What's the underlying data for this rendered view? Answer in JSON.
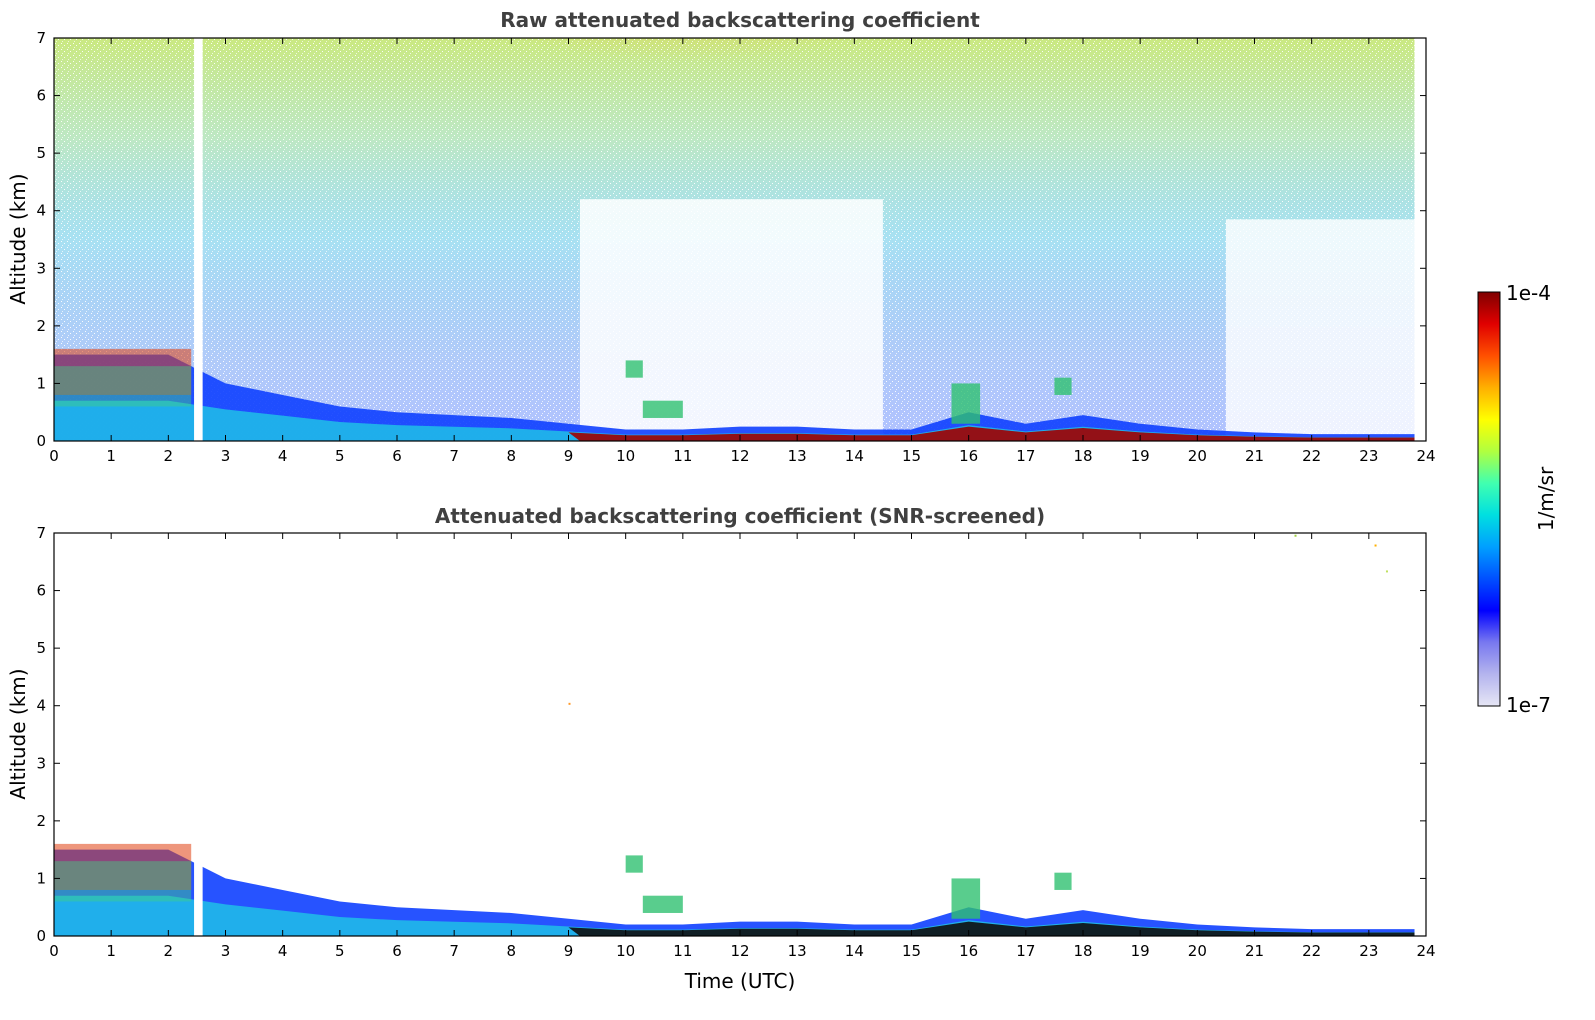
{
  "chart_data": [
    {
      "type": "heatmap",
      "title": "Raw attenuated backscattering coefficient",
      "xlabel": "",
      "ylabel": "Altitude (km)",
      "xlim": [
        0,
        24
      ],
      "ylim": [
        0,
        7
      ],
      "xticks": [
        0,
        1,
        2,
        3,
        4,
        5,
        6,
        7,
        8,
        9,
        10,
        11,
        12,
        13,
        14,
        15,
        16,
        17,
        18,
        19,
        20,
        21,
        22,
        23,
        24
      ],
      "yticks": [
        0,
        1,
        2,
        3,
        4,
        5,
        6,
        7
      ],
      "data_gap_utc": [
        2.45,
        2.6
      ],
      "boundary_layer_top_km": [
        [
          0,
          1.5
        ],
        [
          1,
          1.5
        ],
        [
          2,
          1.5
        ],
        [
          3,
          1.0
        ],
        [
          4,
          0.8
        ],
        [
          5,
          0.6
        ],
        [
          6,
          0.5
        ],
        [
          7,
          0.45
        ],
        [
          8,
          0.4
        ],
        [
          9,
          0.3
        ],
        [
          10,
          0.2
        ],
        [
          11,
          0.2
        ],
        [
          12,
          0.25
        ],
        [
          13,
          0.25
        ],
        [
          14,
          0.2
        ],
        [
          15,
          0.2
        ],
        [
          16,
          0.5
        ],
        [
          17,
          0.3
        ],
        [
          18,
          0.45
        ],
        [
          19,
          0.3
        ],
        [
          20,
          0.2
        ],
        [
          21,
          0.15
        ],
        [
          22,
          0.12
        ],
        [
          23,
          0.12
        ],
        [
          23.8,
          0.12
        ]
      ],
      "cloud_patches": [
        {
          "x_utc": [
            10.0,
            10.3
          ],
          "alt_km": [
            1.1,
            1.4
          ]
        },
        {
          "x_utc": [
            10.3,
            11.0
          ],
          "alt_km": [
            0.4,
            0.7
          ]
        },
        {
          "x_utc": [
            15.7,
            16.2
          ],
          "alt_km": [
            0.3,
            1.0
          ]
        },
        {
          "x_utc": [
            17.5,
            17.8
          ],
          "alt_km": [
            0.8,
            1.1
          ]
        }
      ]
    },
    {
      "type": "heatmap",
      "title": "Attenuated backscattering coefficient (SNR-screened)",
      "xlabel": "Time (UTC)",
      "ylabel": "Altitude (km)",
      "xlim": [
        0,
        24
      ],
      "ylim": [
        0,
        7
      ],
      "xticks": [
        0,
        1,
        2,
        3,
        4,
        5,
        6,
        7,
        8,
        9,
        10,
        11,
        12,
        13,
        14,
        15,
        16,
        17,
        18,
        19,
        20,
        21,
        22,
        23,
        24
      ],
      "yticks": [
        0,
        1,
        2,
        3,
        4,
        5,
        6,
        7
      ],
      "data_gap_utc": [
        2.45,
        2.6
      ]
    }
  ],
  "colorbar": {
    "label": "1/m/sr",
    "max_label": "1e-4",
    "min_label": "1e-7",
    "colors": [
      "#e6e6f5",
      "#b4b4ee",
      "#7878f0",
      "#0000ff",
      "#0050ff",
      "#00a0ff",
      "#00e0e0",
      "#40ffb0",
      "#b0ff40",
      "#ffff00",
      "#ffb000",
      "#ff5000",
      "#e00000",
      "#800000"
    ]
  }
}
